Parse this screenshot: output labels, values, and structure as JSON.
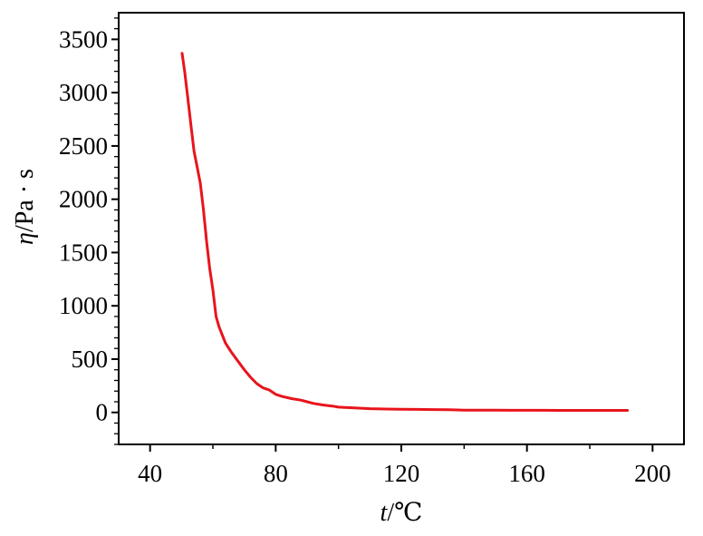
{
  "chart_data": {
    "type": "line",
    "title": "",
    "xlabel_italic": "t",
    "xlabel_rest": "/℃",
    "ylabel_italic": "η",
    "ylabel_rest": "/Pa · s",
    "xlim": [
      30,
      210
    ],
    "ylim": [
      -300,
      3750
    ],
    "x_ticks": [
      40,
      80,
      120,
      160,
      200
    ],
    "x_tick_labels": [
      "40",
      "80",
      "120",
      "160",
      "200"
    ],
    "y_ticks": [
      0,
      500,
      1000,
      1500,
      2000,
      2500,
      3000,
      3500
    ],
    "y_tick_labels": [
      "0",
      "500",
      "1000",
      "1500",
      "2000",
      "2500",
      "3000",
      "3500"
    ],
    "grid": false,
    "series": [
      {
        "color": "#e8141c",
        "x": [
          50.2,
          51,
          52,
          53,
          54,
          55,
          56,
          57,
          58,
          59,
          60,
          61,
          62,
          64,
          66,
          68,
          70,
          72,
          74,
          76,
          78,
          80,
          82,
          85,
          88,
          90,
          92,
          95,
          98,
          100,
          105,
          110,
          115,
          120,
          125,
          130,
          135,
          140,
          145,
          150,
          155,
          160,
          165,
          170,
          175,
          180,
          185,
          192
        ],
        "y": [
          3370,
          3200,
          2950,
          2700,
          2450,
          2300,
          2150,
          1900,
          1600,
          1350,
          1150,
          900,
          800,
          650,
          560,
          480,
          400,
          330,
          270,
          230,
          210,
          170,
          150,
          130,
          115,
          100,
          85,
          70,
          60,
          50,
          42,
          35,
          32,
          30,
          28,
          27,
          25,
          22,
          22,
          21,
          20,
          20,
          20,
          19,
          19,
          19,
          19,
          19
        ]
      }
    ]
  }
}
